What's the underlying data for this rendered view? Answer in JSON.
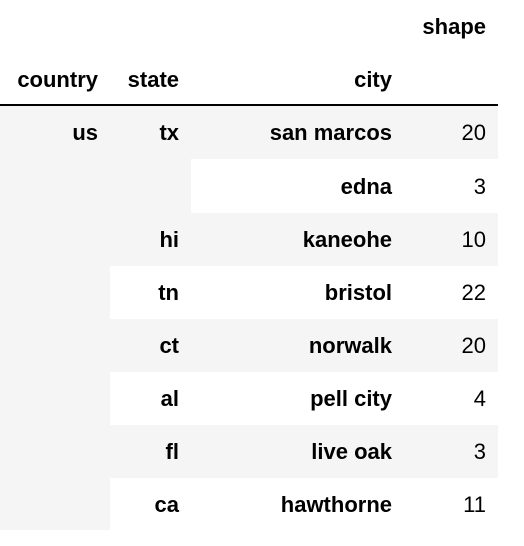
{
  "header": {
    "value_column": "shape",
    "index_names": [
      "country",
      "state",
      "city"
    ]
  },
  "rows": [
    {
      "country": "us",
      "state": "tx",
      "city": "san marcos",
      "shape": "20"
    },
    {
      "country": "",
      "state": "",
      "city": "edna",
      "shape": "3"
    },
    {
      "country": "",
      "state": "hi",
      "city": "kaneohe",
      "shape": "10"
    },
    {
      "country": "",
      "state": "tn",
      "city": "bristol",
      "shape": "22"
    },
    {
      "country": "",
      "state": "ct",
      "city": "norwalk",
      "shape": "20"
    },
    {
      "country": "",
      "state": "al",
      "city": "pell city",
      "shape": "4"
    },
    {
      "country": "",
      "state": "fl",
      "city": "live oak",
      "shape": "3"
    },
    {
      "country": "",
      "state": "ca",
      "city": "hawthorne",
      "shape": "11"
    }
  ]
}
